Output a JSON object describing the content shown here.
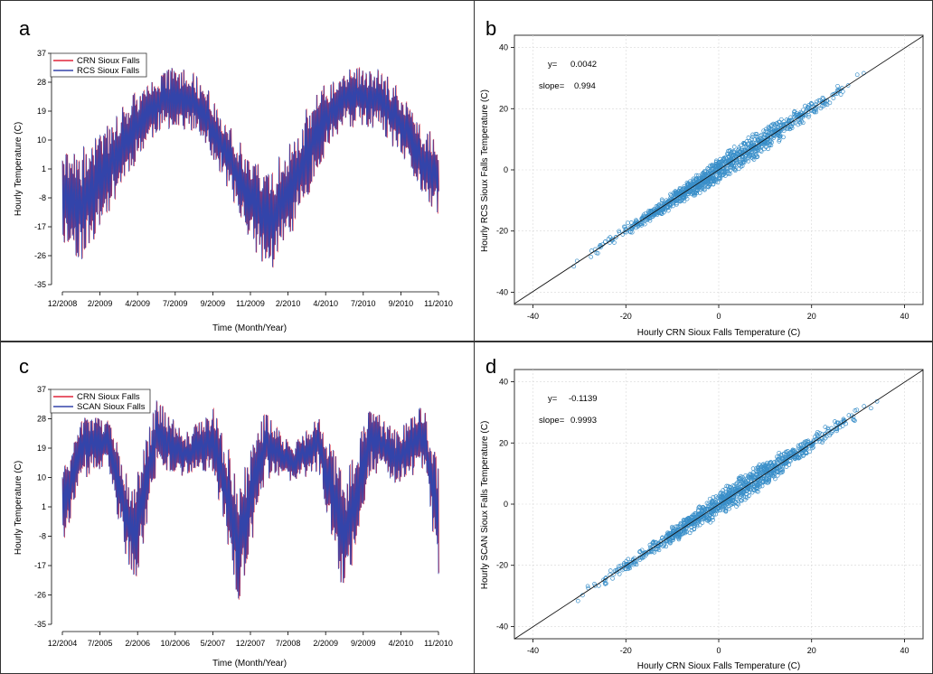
{
  "chart_data": [
    {
      "panel_label": "a",
      "type": "line",
      "xlabel": "Time (Month/Year)",
      "ylabel": "Hourly Temperature (C)",
      "ylim": [
        -35,
        37
      ],
      "y_ticks": [
        -35,
        -26,
        -17,
        -8,
        1,
        10,
        19,
        28,
        37
      ],
      "x_tick_labels": [
        "12/2008",
        "2/2009",
        "4/2009",
        "7/2009",
        "9/2009",
        "11/2009",
        "2/2010",
        "4/2010",
        "7/2010",
        "9/2010",
        "11/2010"
      ],
      "legend_position": "top-left",
      "series": [
        {
          "name": "CRN Sioux Falls",
          "color": "#e0253a"
        },
        {
          "name": "RCS Sioux Falls",
          "color": "#3344aa"
        }
      ],
      "envelope": {
        "x": [
          0,
          0.5,
          1,
          1.5,
          2,
          2.5,
          3,
          3.5,
          4,
          4.5,
          5,
          5.5,
          6,
          6.5,
          7,
          7.5,
          8,
          8.5,
          9,
          9.5,
          10
        ],
        "upper": [
          6,
          8,
          12,
          20,
          26,
          31,
          33,
          31,
          24,
          14,
          4,
          2,
          8,
          20,
          28,
          32,
          33,
          32,
          26,
          16,
          10
        ],
        "lower": [
          -22,
          -28,
          -18,
          -6,
          4,
          12,
          14,
          12,
          4,
          -8,
          -22,
          -32,
          -22,
          -8,
          6,
          14,
          14,
          12,
          4,
          -6,
          -14
        ]
      }
    },
    {
      "panel_label": "b",
      "type": "scatter",
      "xlabel": "Hourly CRN Sioux Falls Temperature (C)",
      "ylabel": "Hourly RCS Sioux Falls Temperature (C)",
      "xlim": [
        -44,
        44
      ],
      "ylim": [
        -44,
        44
      ],
      "x_ticks": [
        -40,
        -20,
        0,
        20,
        40
      ],
      "y_ticks": [
        -40,
        -20,
        0,
        20,
        40
      ],
      "grid": true,
      "point_color": "#3a8fc9",
      "range": [
        -34,
        35
      ],
      "fit": {
        "intercept": 0.0042,
        "slope": 0.994
      },
      "annotations": {
        "y_label": "y=",
        "y_value": "0.0042",
        "slope_label": "slope=",
        "slope_value": "0.994"
      }
    },
    {
      "panel_label": "c",
      "type": "line",
      "xlabel": "Time (Month/Year)",
      "ylabel": "Hourly Temperature (C)",
      "ylim": [
        -35,
        37
      ],
      "y_ticks": [
        -35,
        -26,
        -17,
        -8,
        1,
        10,
        19,
        28,
        37
      ],
      "x_tick_labels": [
        "12/2004",
        "7/2005",
        "2/2006",
        "10/2006",
        "5/2007",
        "12/2007",
        "7/2008",
        "2/2009",
        "9/2009",
        "4/2010",
        "11/2010"
      ],
      "legend_position": "top-left",
      "series": [
        {
          "name": "CRN Sioux Falls",
          "color": "#e0253a"
        },
        {
          "name": "SCAN Sioux Falls",
          "color": "#3344aa"
        }
      ],
      "envelope": {
        "x": [
          0,
          0.6,
          1.2,
          1.9,
          2.5,
          3.3,
          4.0,
          4.7,
          5.4,
          6.1,
          6.8,
          7.5,
          8.2,
          8.9,
          9.6,
          10
        ],
        "upper": [
          12,
          30,
          28,
          8,
          34,
          24,
          32,
          10,
          31,
          20,
          30,
          10,
          32,
          24,
          33,
          14
        ],
        "lower": [
          -10,
          10,
          12,
          -26,
          12,
          10,
          12,
          -30,
          10,
          8,
          12,
          -28,
          12,
          8,
          12,
          -20
        ]
      }
    },
    {
      "panel_label": "d",
      "type": "scatter",
      "xlabel": "Hourly CRN Sioux Falls Temperature (C)",
      "ylabel": "Hourly SCAN Sioux Falls Temperature (C)",
      "xlim": [
        -44,
        44
      ],
      "ylim": [
        -44,
        44
      ],
      "x_ticks": [
        -40,
        -20,
        0,
        20,
        40
      ],
      "y_ticks": [
        -40,
        -20,
        0,
        20,
        40
      ],
      "grid": true,
      "point_color": "#3a8fc9",
      "range": [
        -33,
        37
      ],
      "fit": {
        "intercept": -0.1139,
        "slope": 0.9993
      },
      "annotations": {
        "y_label": "y=",
        "y_value": "-0.1139",
        "slope_label": "slope=",
        "slope_value": "0.9993"
      }
    }
  ]
}
